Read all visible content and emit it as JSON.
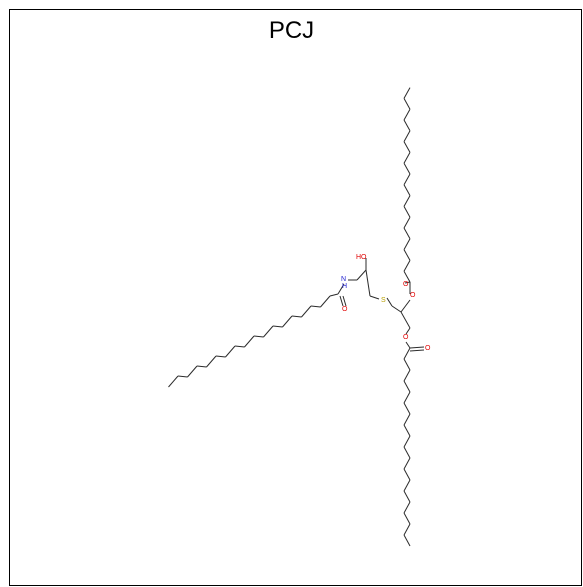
{
  "title": "PCJ",
  "atom_labels": {
    "hydroxyl": "HO",
    "amide_nitrogen": "N",
    "amide_hydrogen": "H",
    "amide_oxygen": "O",
    "sulfur": "S",
    "ester1_ether_oxygen": "O",
    "ester1_carbonyl_oxygen": "O",
    "ester2_ether_oxygen": "O",
    "ester2_carbonyl_oxygen": "O"
  },
  "colors": {
    "bond": "#2b2b2b",
    "oxygen": "#e00000",
    "nitrogen": "#2020d0",
    "sulfur": "#b8a000",
    "frame": "#000000"
  }
}
